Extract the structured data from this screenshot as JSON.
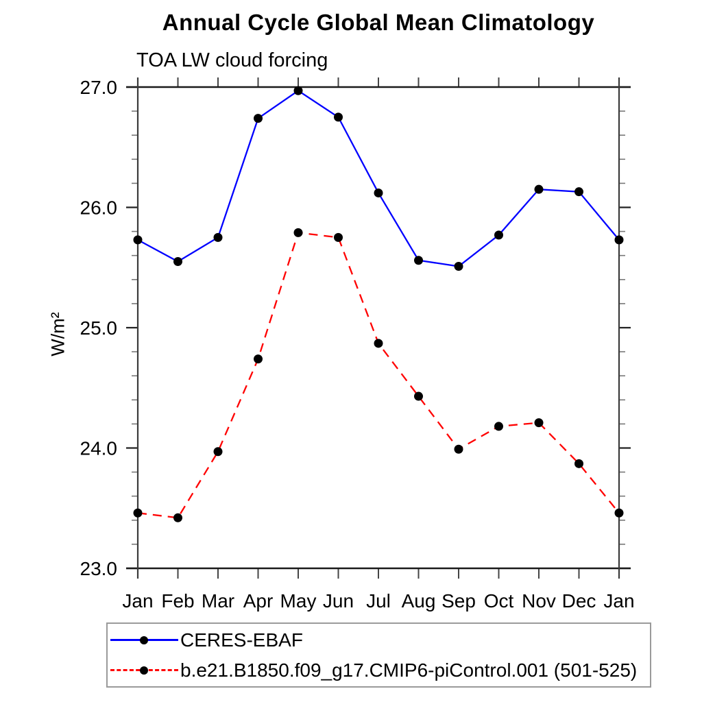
{
  "chart_data": {
    "type": "line",
    "title": "Annual Cycle Global Mean Climatology",
    "subtitle": "TOA LW cloud forcing",
    "ylabel": "W/m²",
    "xlabel": "",
    "categories": [
      "Jan",
      "Feb",
      "Mar",
      "Apr",
      "May",
      "Jun",
      "Jul",
      "Aug",
      "Sep",
      "Oct",
      "Nov",
      "Dec",
      "Jan"
    ],
    "ylim": [
      23.0,
      27.0
    ],
    "yticks_major": [
      27.0,
      26.0,
      25.0,
      24.0,
      23.0
    ],
    "ytick_labels": [
      "27.0",
      "26.0",
      "25.0",
      "24.0",
      "23.0"
    ],
    "minor_tick_interval": 0.2,
    "grid": false,
    "legend_position": "below",
    "series": [
      {
        "name": "CERES-EBAF",
        "color": "#0000ff",
        "style": "solid",
        "marker": "circle",
        "marker_color": "#000000",
        "values": [
          25.73,
          25.55,
          25.75,
          26.74,
          26.97,
          26.75,
          26.12,
          25.56,
          25.51,
          25.77,
          26.15,
          26.13,
          25.73
        ]
      },
      {
        "name": "b.e21.B1850.f09_g17.CMIP6-piControl.001 (501-525)",
        "color": "#ff0000",
        "style": "dashed",
        "marker": "circle",
        "marker_color": "#000000",
        "values": [
          23.46,
          23.42,
          23.97,
          24.74,
          25.79,
          25.75,
          24.87,
          24.43,
          23.99,
          24.18,
          24.21,
          23.87,
          23.46
        ]
      }
    ]
  }
}
